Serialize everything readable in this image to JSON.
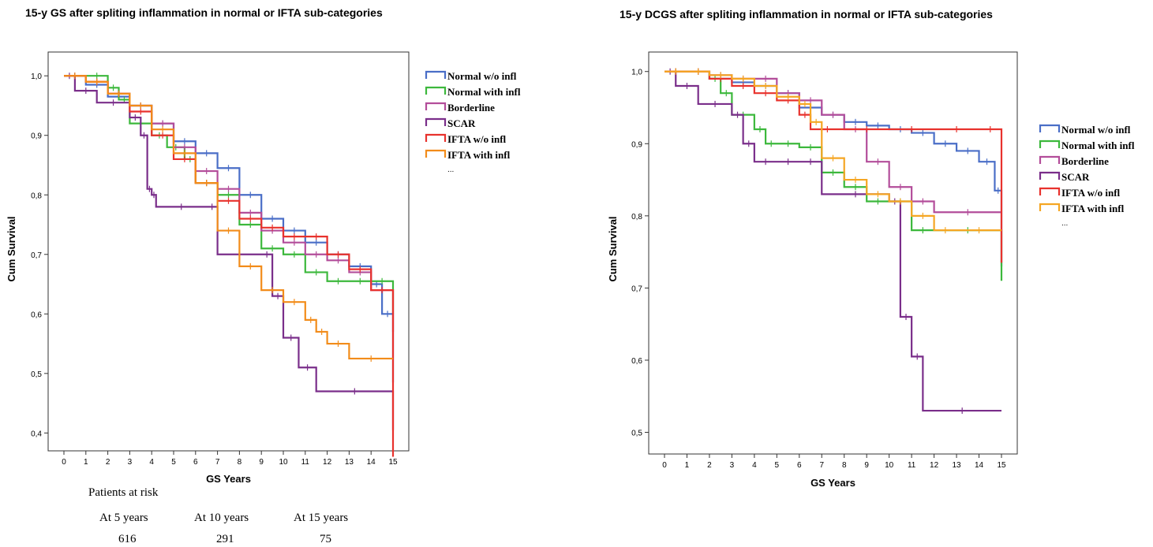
{
  "chart_data": [
    {
      "type": "line",
      "title": "15-y GS after spliting inflammation in normal or IFTA sub-categories",
      "xlabel": "GS Years",
      "ylabel": "Cum Survival",
      "xlim": [
        0,
        15
      ],
      "ylim": [
        0.37,
        1.04
      ],
      "x_ticks": [
        0,
        1,
        2,
        3,
        4,
        5,
        6,
        7,
        8,
        9,
        10,
        11,
        12,
        13,
        14,
        15
      ],
      "y_ticks": [
        0.4,
        0.5,
        0.6,
        0.7,
        0.8,
        0.9,
        1.0
      ],
      "y_tick_labels": [
        "0,4",
        "0,5",
        "0,6",
        "0,7",
        "0,8",
        "0,9",
        "1,0"
      ],
      "legend_position": "right",
      "legend_more": "...",
      "series": [
        {
          "name": "Normal w/o infl",
          "color": "#4a6ec7",
          "x": [
            0,
            1,
            2,
            3,
            4,
            5,
            6,
            7,
            8,
            9,
            10,
            11,
            12,
            13,
            14,
            14.5,
            15
          ],
          "y": [
            1.0,
            0.985,
            0.965,
            0.95,
            0.92,
            0.89,
            0.87,
            0.845,
            0.8,
            0.76,
            0.74,
            0.72,
            0.7,
            0.68,
            0.65,
            0.6,
            0.485
          ]
        },
        {
          "name": "Normal with infl",
          "color": "#3cb83c",
          "x": [
            0,
            1,
            2,
            2.5,
            3,
            4,
            4.7,
            5.5,
            6,
            7,
            8,
            9,
            10,
            11,
            12,
            13,
            14,
            15
          ],
          "y": [
            1.0,
            1.0,
            0.98,
            0.96,
            0.92,
            0.9,
            0.88,
            0.86,
            0.82,
            0.8,
            0.75,
            0.71,
            0.7,
            0.67,
            0.655,
            0.655,
            0.655,
            0.6
          ]
        },
        {
          "name": "Borderline",
          "color": "#b34d9a",
          "x": [
            0,
            1,
            2,
            3,
            4,
            5,
            6,
            7,
            8,
            9,
            10,
            11,
            12,
            13,
            14,
            15
          ],
          "y": [
            1.0,
            0.99,
            0.97,
            0.95,
            0.92,
            0.88,
            0.84,
            0.81,
            0.77,
            0.74,
            0.72,
            0.7,
            0.69,
            0.67,
            0.64,
            0.57
          ]
        },
        {
          "name": "SCAR",
          "color": "#7a2e8a",
          "x": [
            0,
            0.5,
            1.5,
            3,
            3.5,
            3.8,
            4,
            4.2,
            6.5,
            7,
            9,
            9.5,
            10,
            10.7,
            11.5,
            15
          ],
          "y": [
            1.0,
            0.975,
            0.955,
            0.93,
            0.9,
            0.81,
            0.8,
            0.78,
            0.78,
            0.7,
            0.7,
            0.63,
            0.56,
            0.51,
            0.47,
            0.405
          ]
        },
        {
          "name": "IFTA w/o infl",
          "color": "#e8322d",
          "x": [
            0,
            1,
            2,
            3,
            4,
            5,
            6,
            7,
            8,
            9,
            10,
            11,
            12,
            13,
            14,
            15
          ],
          "y": [
            1.0,
            0.99,
            0.97,
            0.94,
            0.9,
            0.86,
            0.82,
            0.79,
            0.76,
            0.745,
            0.73,
            0.73,
            0.7,
            0.675,
            0.64,
            0.36
          ]
        },
        {
          "name": "IFTA with infl",
          "color": "#f28c1a",
          "x": [
            0,
            1,
            2,
            3,
            4,
            5,
            6,
            7,
            8,
            9,
            10,
            11,
            11.5,
            12,
            13,
            15
          ],
          "y": [
            1.0,
            0.99,
            0.97,
            0.95,
            0.91,
            0.87,
            0.82,
            0.74,
            0.68,
            0.64,
            0.62,
            0.59,
            0.57,
            0.55,
            0.525,
            0.525
          ]
        }
      ]
    },
    {
      "type": "line",
      "title": "15-y DCGS after spliting inflammation in normal or IFTA sub-categories",
      "xlabel": "GS Years",
      "ylabel": "Cum Survival",
      "xlim": [
        0,
        15
      ],
      "ylim": [
        0.47,
        1.027
      ],
      "x_ticks": [
        0,
        1,
        2,
        3,
        4,
        5,
        6,
        7,
        8,
        9,
        10,
        11,
        12,
        13,
        14,
        15
      ],
      "y_ticks": [
        0.5,
        0.6,
        0.7,
        0.8,
        0.9,
        1.0
      ],
      "y_tick_labels": [
        "0,5",
        "0,6",
        "0,7",
        "0,8",
        "0,9",
        "1,0"
      ],
      "legend_position": "right",
      "legend_more": "...",
      "series": [
        {
          "name": "Normal w/o infl",
          "color": "#4a6ec7",
          "x": [
            0,
            1,
            2,
            3,
            4,
            5,
            6,
            7,
            8,
            9,
            10,
            11,
            12,
            13,
            14,
            14.7,
            15
          ],
          "y": [
            1.0,
            1.0,
            0.99,
            0.985,
            0.98,
            0.97,
            0.95,
            0.94,
            0.93,
            0.925,
            0.92,
            0.915,
            0.9,
            0.89,
            0.875,
            0.835,
            0.73
          ]
        },
        {
          "name": "Normal with infl",
          "color": "#3cb83c",
          "x": [
            0,
            1,
            2,
            2.5,
            3,
            4,
            4.5,
            5,
            6,
            7,
            8,
            9,
            10,
            11,
            12,
            15
          ],
          "y": [
            1.0,
            1.0,
            0.99,
            0.97,
            0.94,
            0.92,
            0.9,
            0.9,
            0.895,
            0.86,
            0.84,
            0.82,
            0.82,
            0.78,
            0.78,
            0.71
          ]
        },
        {
          "name": "Borderline",
          "color": "#b34d9a",
          "x": [
            0,
            1,
            2,
            3,
            4,
            5,
            6,
            7,
            8,
            9,
            10,
            11,
            12,
            15
          ],
          "y": [
            1.0,
            1.0,
            0.995,
            0.99,
            0.99,
            0.97,
            0.96,
            0.94,
            0.92,
            0.875,
            0.84,
            0.82,
            0.805,
            0.805
          ]
        },
        {
          "name": "SCAR",
          "color": "#7a2e8a",
          "x": [
            0,
            0.5,
            1.5,
            3,
            3.5,
            4,
            5,
            6,
            7,
            10,
            10.5,
            11,
            11.5,
            15
          ],
          "y": [
            1.0,
            0.98,
            0.955,
            0.94,
            0.9,
            0.875,
            0.875,
            0.875,
            0.83,
            0.82,
            0.66,
            0.605,
            0.53,
            0.53
          ]
        },
        {
          "name": "IFTA w/o infl",
          "color": "#e8322d",
          "x": [
            0,
            1,
            2,
            3,
            4,
            5,
            6,
            6.5,
            8,
            10,
            12,
            14,
            15
          ],
          "y": [
            1.0,
            1.0,
            0.99,
            0.98,
            0.97,
            0.96,
            0.94,
            0.92,
            0.92,
            0.92,
            0.92,
            0.92,
            0.735
          ]
        },
        {
          "name": "IFTA with infl",
          "color": "#f5a623",
          "x": [
            0,
            1,
            2,
            3,
            4,
            5,
            6,
            6.5,
            7,
            8,
            9,
            10,
            11,
            12,
            13,
            15
          ],
          "y": [
            1.0,
            1.0,
            0.995,
            0.99,
            0.98,
            0.965,
            0.955,
            0.93,
            0.88,
            0.85,
            0.83,
            0.82,
            0.8,
            0.78,
            0.78,
            0.78
          ]
        }
      ]
    }
  ],
  "risk_table": {
    "title": "Patients at risk",
    "columns": [
      {
        "label": "At 5 years",
        "value": "616"
      },
      {
        "label": "At 10 years",
        "value": "291"
      },
      {
        "label": "At 15 years",
        "value": "75"
      }
    ]
  }
}
